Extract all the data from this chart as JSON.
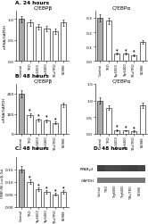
{
  "categories": [
    "Control",
    "TRO",
    "Trp6000",
    "Trp6400",
    "TBu/TRO",
    "K2988"
  ],
  "A_cebpb": [
    1.0,
    0.92,
    0.82,
    0.78,
    0.72,
    0.92
  ],
  "A_cebpa": [
    0.3,
    0.28,
    0.05,
    0.05,
    0.04,
    0.13
  ],
  "B_cebpb": [
    200,
    95,
    70,
    65,
    55,
    145
  ],
  "B_cebpa": [
    1.0,
    0.78,
    0.12,
    0.1,
    0.08,
    0.85
  ],
  "C_cebpre": [
    0.15,
    0.1,
    0.07,
    0.06,
    0.05,
    0.06
  ],
  "bar_color_white": "#ffffff",
  "bar_color_gray": "#aaaaaa",
  "bar_edge": "#000000",
  "A_cebpb_ylim": [
    0,
    1.2
  ],
  "A_cebpb_yticks": [
    0,
    0.5,
    1.0
  ],
  "A_cebpa_ylim": [
    0,
    0.35
  ],
  "A_cebpa_yticks": [
    0,
    0.1,
    0.2,
    0.3
  ],
  "B_cebpb_ylim": [
    0,
    250
  ],
  "B_cebpb_yticks": [
    0,
    100,
    200
  ],
  "B_cebpa_ylim": [
    0,
    1.5
  ],
  "B_cebpa_yticks": [
    0,
    0.5,
    1.0,
    1.5
  ],
  "C_ylim": [
    0,
    0.2
  ],
  "C_yticks": [
    0,
    0.05,
    0.1,
    0.15
  ],
  "title_A": "A. 24 hours",
  "title_B": "B. 48 hours",
  "title_C": "C. 48 hours",
  "title_D": "D. 48 hours",
  "label_cebpb": "C/EBPβ",
  "label_cebpa": "C/EBPα",
  "ylabel_mRNA": "mRNA/GAPDH",
  "ylabel_luc": "C/EBP-RE-Luc/β-Gal",
  "wb_label1": "PPARγ2",
  "wb_label2": "GAPDH",
  "asterisk_A_alpha": [
    2,
    3,
    4
  ],
  "asterisk_B_beta": [
    1,
    2,
    3,
    4
  ],
  "asterisk_B_alpha": [
    2,
    3,
    4
  ],
  "asterisk_C": [
    1,
    2,
    3,
    4,
    5
  ],
  "wb_top_colors": [
    "#404040",
    "#4a4a4a",
    "#484848",
    "#424242",
    "#3e3e3e",
    "#464646"
  ],
  "wb_bot_colors": [
    "#787878",
    "#787878",
    "#787878",
    "#787878",
    "#787878",
    "#787878"
  ]
}
